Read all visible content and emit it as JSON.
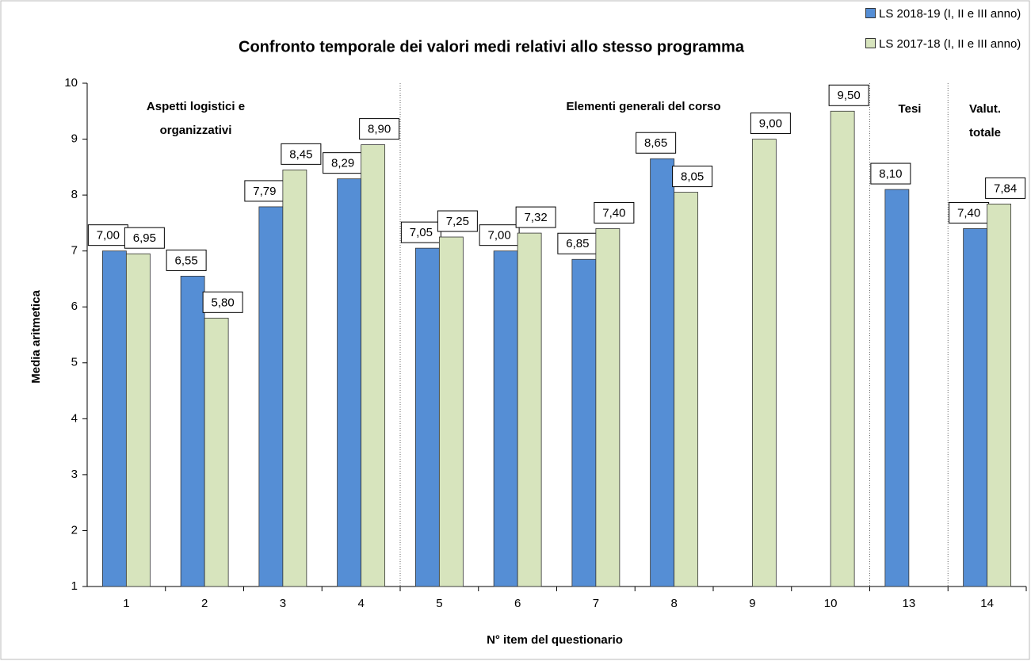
{
  "chart_data": {
    "type": "bar",
    "title": "Confronto temporale dei valori medi relativi allo stesso programma",
    "x_label": "N° item del questionario",
    "y_label": "Media aritmetica",
    "categories": [
      "1",
      "2",
      "3",
      "4",
      "5",
      "6",
      "7",
      "8",
      "9",
      "10",
      "13",
      "14"
    ],
    "series": [
      {
        "name": "LS 2018-19 (I, II e III anno)",
        "color": "#558ed5",
        "values": [
          7.0,
          6.55,
          7.79,
          8.29,
          7.05,
          7.0,
          6.85,
          8.65,
          null,
          null,
          8.1,
          7.4
        ],
        "value_labels": [
          "7,00",
          "6,55",
          "7,79",
          "8,29",
          "7,05",
          "7,00",
          "6,85",
          "8,65",
          null,
          null,
          "8,10",
          "7,40"
        ]
      },
      {
        "name": "LS 2017-18 (I, II e III anno)",
        "color": "#d7e4bd",
        "values": [
          6.95,
          5.8,
          8.45,
          8.9,
          7.25,
          7.32,
          7.4,
          8.05,
          9.0,
          9.5,
          null,
          7.84
        ],
        "value_labels": [
          "6,95",
          "5,80",
          "8,45",
          "8,90",
          "7,25",
          "7,32",
          "7,40",
          "8,05",
          "9,00",
          "9,50",
          null,
          "7,84"
        ]
      }
    ],
    "annotations": [
      {
        "lines": [
          "Aspetti logistici e",
          "organizzativi"
        ]
      },
      {
        "lines": [
          "Elementi generali del corso"
        ]
      },
      {
        "lines": [
          "Tesi"
        ]
      },
      {
        "lines": [
          "Valut.",
          "totale"
        ]
      }
    ],
    "ylim": [
      1,
      10
    ],
    "yticks": [
      1,
      2,
      3,
      4,
      5,
      6,
      7,
      8,
      9,
      10
    ],
    "legend": "top-right"
  }
}
